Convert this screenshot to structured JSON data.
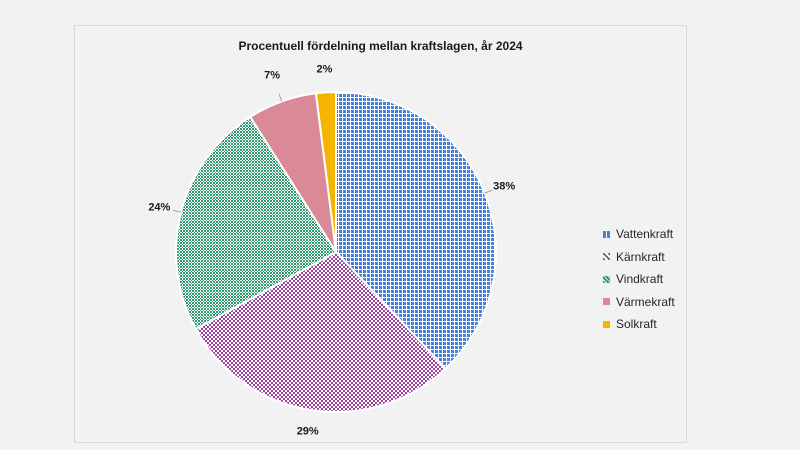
{
  "chart_data": {
    "type": "pie",
    "title": "Procentuell fördelning mellan kraftslagen, år 2024",
    "categories": [
      "Vattenkraft",
      "Kärnkraft",
      "Vindkraft",
      "Värmekraft",
      "Solkraft"
    ],
    "values": [
      38,
      29,
      24,
      7,
      2
    ],
    "labels": [
      "38%",
      "29%",
      "24%",
      "7%",
      "2%"
    ],
    "colors": [
      "#4a7fd6",
      "#9b3f9b",
      "#2f9a6f",
      "#d98a96",
      "#f5b400"
    ],
    "legend": "right"
  }
}
